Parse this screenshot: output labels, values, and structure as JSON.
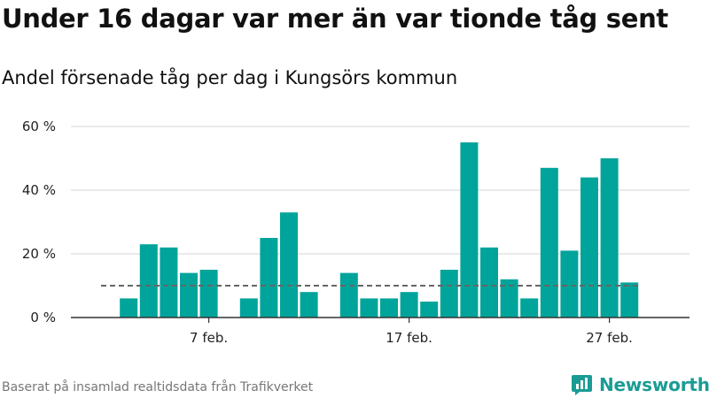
{
  "header": {
    "title": "Under 16 dagar var mer än var tionde tåg sent",
    "subtitle": "Andel försenade tåg per dag i Kungsörs kommun"
  },
  "footer": {
    "source": "Baserat på insamlad realtidsdata från Trafikverket",
    "brand": "Newsworthy"
  },
  "colors": {
    "bar": "#00a49a",
    "reference_line": "#666666",
    "grid": "#dddddd",
    "brand": "#1a9c94"
  },
  "icons": {
    "brand_logo": "newsworthy-chart-bubble-icon"
  },
  "chart_data": {
    "type": "bar",
    "x": [
      "2022-02-01",
      "2022-02-02",
      "2022-02-03",
      "2022-02-04",
      "2022-02-05",
      "2022-02-06",
      "2022-02-07",
      "2022-02-08",
      "2022-02-09",
      "2022-02-10",
      "2022-02-11",
      "2022-02-12",
      "2022-02-13",
      "2022-02-14",
      "2022-02-15",
      "2022-02-16",
      "2022-02-17",
      "2022-02-18",
      "2022-02-19",
      "2022-02-20",
      "2022-02-21",
      "2022-02-22",
      "2022-02-23",
      "2022-02-24",
      "2022-02-25",
      "2022-02-26",
      "2022-02-27",
      "2022-02-28"
    ],
    "values": [
      null,
      null,
      6,
      23,
      22,
      14,
      15,
      null,
      6,
      25,
      33,
      8,
      null,
      14,
      6,
      6,
      8,
      5,
      15,
      55,
      22,
      12,
      6,
      47,
      21,
      44,
      50,
      11
    ],
    "reference_value": 10,
    "xticks": [
      {
        "x": "2022-02-07",
        "label": "7 feb."
      },
      {
        "x": "2022-02-17",
        "label": "17 feb."
      },
      {
        "x": "2022-02-27",
        "label": "27 feb."
      }
    ],
    "yticks": [
      {
        "value": 0,
        "label": "0 %"
      },
      {
        "value": 20,
        "label": "20 %"
      },
      {
        "value": 40,
        "label": "40 %"
      },
      {
        "value": 60,
        "label": "60 %"
      }
    ],
    "ylim": [
      0,
      60
    ],
    "grid": true,
    "legend": "none"
  }
}
